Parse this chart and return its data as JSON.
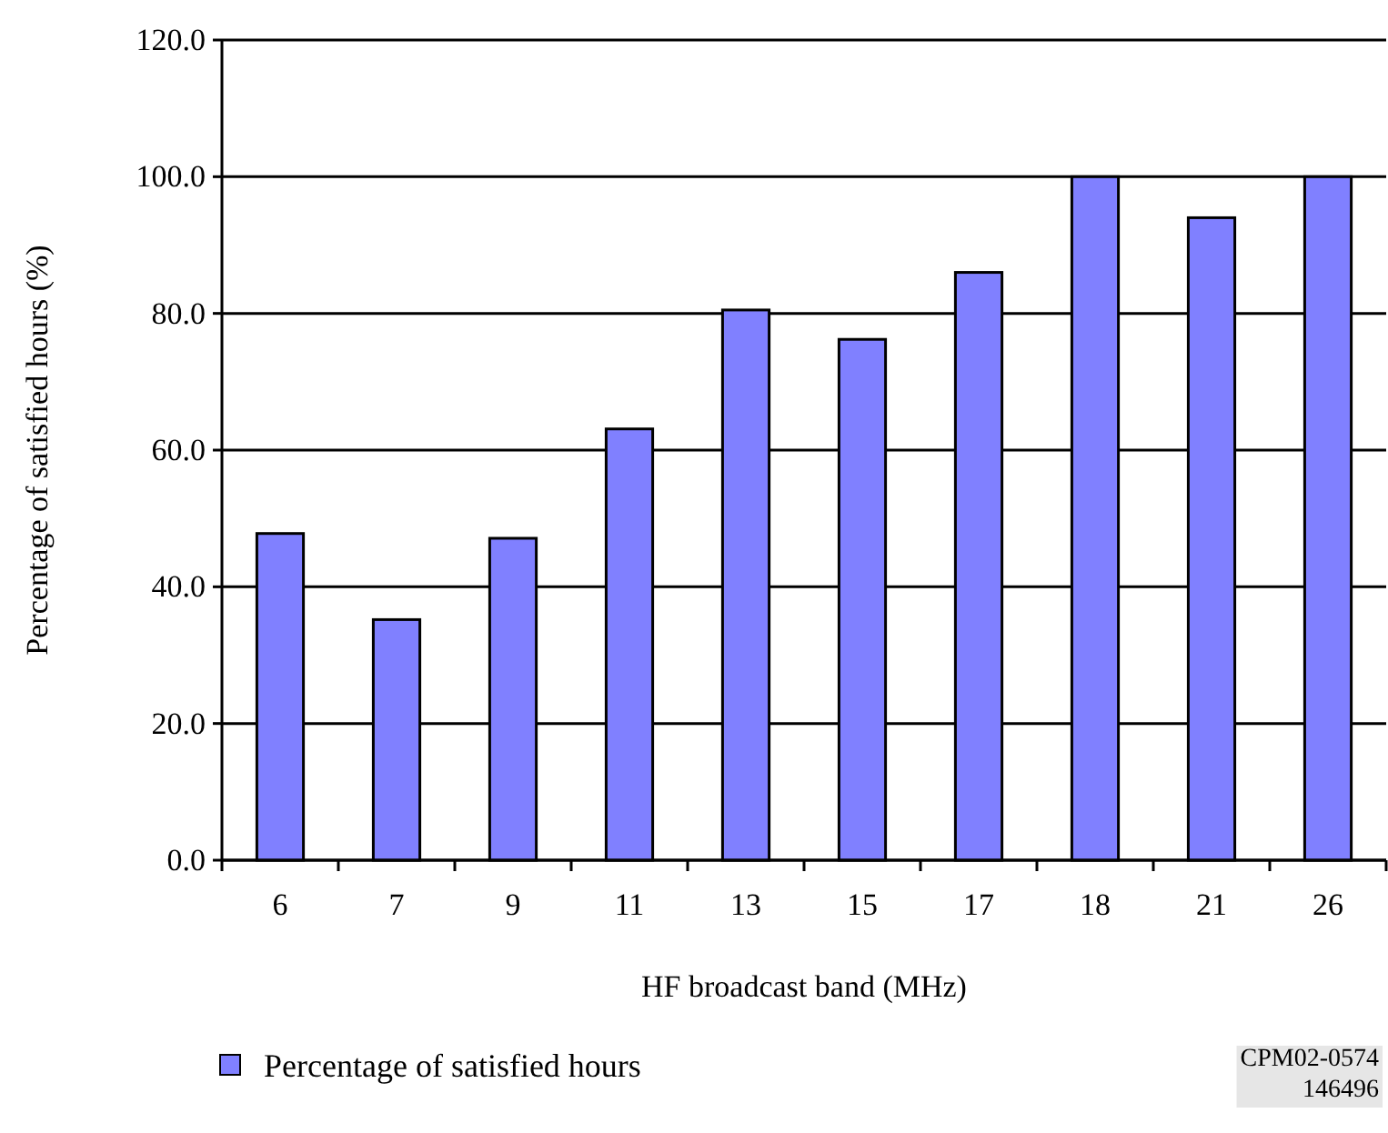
{
  "chart_data": {
    "type": "bar",
    "xlabel": "HF broadcast band (MHz)",
    "ylabel": "Percentage of satisfied hours (%)",
    "categories": [
      "6",
      "7",
      "9",
      "11",
      "13",
      "15",
      "17",
      "18",
      "21",
      "26"
    ],
    "series": [
      {
        "name": "Percentage of satisfied hours",
        "color": "#8080ff",
        "values": [
          47.8,
          35.2,
          47.1,
          63.1,
          80.5,
          76.2,
          86.0,
          100,
          94.0,
          100
        ]
      }
    ],
    "ylim": [
      0,
      120
    ],
    "yticks": [
      {
        "value": 0,
        "label": "0.0"
      },
      {
        "value": 20,
        "label": "20.0"
      },
      {
        "value": 40,
        "label": "40.0"
      },
      {
        "value": 60,
        "label": "60.0"
      },
      {
        "value": 80,
        "label": "80.0"
      },
      {
        "value": 100,
        "label": "100.0"
      },
      {
        "value": 120,
        "label": "120.0"
      }
    ],
    "grid": "y",
    "legend": "bottom left",
    "annotations": [
      "CPM02-0574\n146496"
    ]
  }
}
